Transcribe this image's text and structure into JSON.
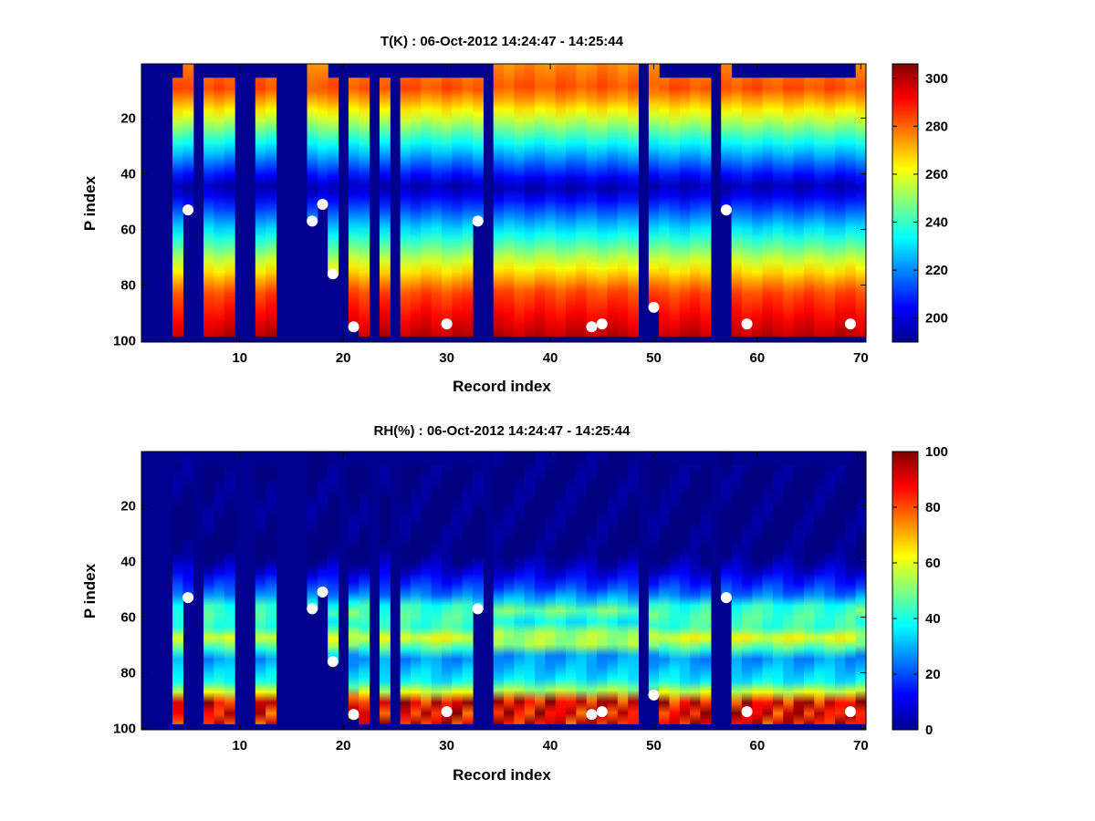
{
  "chart_data": [
    {
      "type": "heatmap",
      "title": "T(K) : 06-Oct-2012 14:24:47 - 14:25:44",
      "xlabel": "Record index",
      "ylabel": "P index",
      "xlim": [
        0.5,
        70.5
      ],
      "ylim": [
        0.5,
        100.5
      ],
      "y_reversed": true,
      "xticks": [
        10,
        20,
        30,
        40,
        50,
        60,
        70
      ],
      "yticks": [
        20,
        40,
        60,
        80,
        100
      ],
      "colorbar": {
        "min": 190,
        "max": 306,
        "ticks": [
          200,
          220,
          240,
          260,
          280,
          300
        ],
        "colormap": "jet"
      },
      "colored_columns": [
        4,
        5,
        7,
        8,
        9,
        12,
        13,
        17,
        18,
        19,
        21,
        22,
        24,
        26,
        27,
        28,
        29,
        30,
        31,
        32,
        33,
        35,
        36,
        37,
        38,
        39,
        40,
        41,
        42,
        43,
        44,
        45,
        46,
        47,
        48,
        50,
        51,
        52,
        53,
        54,
        55,
        57,
        58,
        59,
        60,
        61,
        62,
        63,
        64,
        65,
        66,
        67,
        68,
        69,
        70
      ],
      "column_top_index": {
        "4": 6,
        "5": 1,
        "7": 6,
        "8": 6,
        "9": 6,
        "12": 6,
        "13": 6,
        "17": 1,
        "18": 1,
        "19": 6,
        "21": 6,
        "22": 6,
        "24": 6,
        "26": 6,
        "27": 6,
        "28": 6,
        "29": 6,
        "30": 6,
        "31": 6,
        "32": 6,
        "33": 6,
        "35": 1,
        "36": 1,
        "37": 1,
        "38": 1,
        "39": 1,
        "40": 1,
        "41": 1,
        "42": 1,
        "43": 1,
        "44": 1,
        "45": 1,
        "46": 1,
        "47": 1,
        "48": 1,
        "50": 1,
        "51": 6,
        "52": 6,
        "53": 6,
        "54": 6,
        "55": 6,
        "57": 1,
        "58": 6,
        "59": 6,
        "60": 6,
        "61": 6,
        "62": 6,
        "63": 6,
        "64": 6,
        "65": 6,
        "66": 6,
        "67": 6,
        "68": 6,
        "69": 6,
        "70": 1
      },
      "column_bottom_index": {
        "4": 98,
        "5": 53,
        "7": 98,
        "8": 98,
        "9": 98,
        "12": 98,
        "13": 98,
        "17": 57,
        "18": 51,
        "19": 76,
        "21": 96,
        "22": 98,
        "24": 98,
        "26": 98,
        "27": 98,
        "28": 98,
        "29": 98,
        "30": 98,
        "31": 98,
        "32": 98,
        "33": 57,
        "35": 98,
        "36": 98,
        "37": 98,
        "38": 98,
        "39": 98,
        "40": 98,
        "41": 98,
        "42": 98,
        "43": 98,
        "44": 98,
        "45": 98,
        "46": 98,
        "47": 98,
        "48": 98,
        "50": 88,
        "51": 98,
        "52": 98,
        "53": 98,
        "54": 98,
        "55": 98,
        "57": 53,
        "58": 98,
        "59": 98,
        "60": 98,
        "61": 98,
        "62": 98,
        "63": 98,
        "64": 98,
        "65": 98,
        "66": 98,
        "67": 98,
        "68": 98,
        "69": 98,
        "70": 98
      },
      "profile_shape": "cold core (~195 K) near P index 45, warm (~275 K) near P index 10, hot (~300 K) near P index 95-100",
      "markers": [
        {
          "x": 5,
          "y": 53
        },
        {
          "x": 17,
          "y": 57
        },
        {
          "x": 18,
          "y": 51
        },
        {
          "x": 19,
          "y": 76
        },
        {
          "x": 21,
          "y": 95
        },
        {
          "x": 30,
          "y": 94
        },
        {
          "x": 33,
          "y": 57
        },
        {
          "x": 44,
          "y": 95
        },
        {
          "x": 45,
          "y": 94
        },
        {
          "x": 50,
          "y": 88
        },
        {
          "x": 57,
          "y": 53
        },
        {
          "x": 59,
          "y": 94
        },
        {
          "x": 69,
          "y": 94
        }
      ]
    },
    {
      "type": "heatmap",
      "title": "RH(%) : 06-Oct-2012 14:24:47 - 14:25:44",
      "xlabel": "Record index",
      "ylabel": "P index",
      "xlim": [
        0.5,
        70.5
      ],
      "ylim": [
        0.5,
        100.5
      ],
      "y_reversed": true,
      "xticks": [
        10,
        20,
        30,
        40,
        50,
        60,
        70
      ],
      "yticks": [
        20,
        40,
        60,
        80,
        100
      ],
      "colorbar": {
        "min": 0,
        "max": 100,
        "ticks": [
          0,
          20,
          40,
          60,
          80,
          100
        ],
        "colormap": "jet"
      },
      "colored_columns": [
        4,
        5,
        7,
        8,
        9,
        12,
        13,
        17,
        18,
        19,
        21,
        22,
        24,
        26,
        27,
        28,
        29,
        30,
        31,
        32,
        33,
        35,
        36,
        37,
        38,
        39,
        40,
        41,
        42,
        43,
        44,
        45,
        46,
        47,
        48,
        50,
        51,
        52,
        53,
        54,
        55,
        57,
        58,
        59,
        60,
        61,
        62,
        63,
        64,
        65,
        66,
        67,
        68,
        69,
        70
      ],
      "column_top_index": {
        "4": 6,
        "5": 1,
        "7": 6,
        "8": 6,
        "9": 6,
        "12": 6,
        "13": 6,
        "17": 1,
        "18": 1,
        "19": 6,
        "21": 6,
        "22": 6,
        "24": 6,
        "26": 6,
        "27": 6,
        "28": 6,
        "29": 6,
        "30": 6,
        "31": 6,
        "32": 6,
        "33": 6,
        "35": 1,
        "36": 1,
        "37": 1,
        "38": 1,
        "39": 1,
        "40": 1,
        "41": 1,
        "42": 1,
        "43": 1,
        "44": 1,
        "45": 1,
        "46": 1,
        "47": 1,
        "48": 1,
        "50": 1,
        "51": 6,
        "52": 6,
        "53": 6,
        "54": 6,
        "55": 6,
        "57": 1,
        "58": 6,
        "59": 6,
        "60": 6,
        "61": 6,
        "62": 6,
        "63": 6,
        "64": 6,
        "65": 6,
        "66": 6,
        "67": 6,
        "68": 6,
        "69": 6,
        "70": 1
      },
      "column_bottom_index": {
        "4": 98,
        "5": 53,
        "7": 98,
        "8": 98,
        "9": 98,
        "12": 98,
        "13": 98,
        "17": 57,
        "18": 51,
        "19": 76,
        "21": 96,
        "22": 98,
        "24": 98,
        "26": 98,
        "27": 98,
        "28": 98,
        "29": 98,
        "30": 98,
        "31": 98,
        "32": 98,
        "33": 57,
        "35": 98,
        "36": 98,
        "37": 98,
        "38": 98,
        "39": 98,
        "40": 98,
        "41": 98,
        "42": 98,
        "43": 98,
        "44": 98,
        "45": 98,
        "46": 98,
        "47": 98,
        "48": 98,
        "50": 88,
        "51": 98,
        "52": 98,
        "53": 98,
        "54": 98,
        "55": 98,
        "57": 53,
        "58": 98,
        "59": 98,
        "60": 98,
        "61": 98,
        "62": 98,
        "63": 98,
        "64": 98,
        "65": 98,
        "66": 98,
        "67": 98,
        "68": 98,
        "69": 98,
        "70": 98
      },
      "profile_shape": "near 0% above P index 40, ~20% band at 50, ~40-60% bands near 57 and 67, ~30-40% near 80, ~90-100% near 90-98",
      "markers": [
        {
          "x": 5,
          "y": 53
        },
        {
          "x": 17,
          "y": 57
        },
        {
          "x": 18,
          "y": 51
        },
        {
          "x": 19,
          "y": 76
        },
        {
          "x": 21,
          "y": 95
        },
        {
          "x": 30,
          "y": 94
        },
        {
          "x": 33,
          "y": 57
        },
        {
          "x": 44,
          "y": 95
        },
        {
          "x": 45,
          "y": 94
        },
        {
          "x": 50,
          "y": 88
        },
        {
          "x": 57,
          "y": 53
        },
        {
          "x": 59,
          "y": 94
        },
        {
          "x": 69,
          "y": 94
        }
      ]
    }
  ]
}
